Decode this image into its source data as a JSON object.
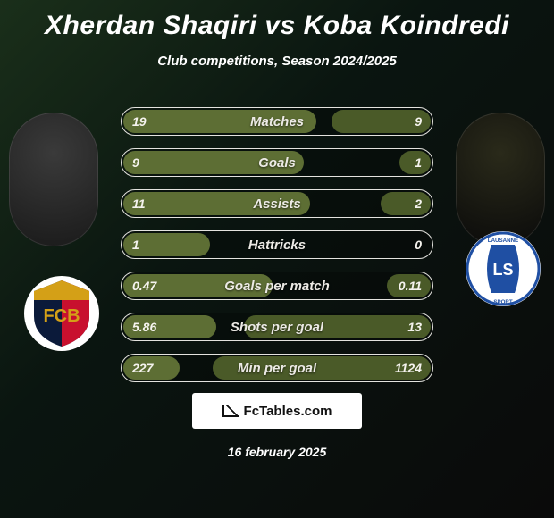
{
  "title": "Xherdan Shaqiri vs Koba Koindredi",
  "subtitle": "Club competitions, Season 2024/2025",
  "brand": "FcTables.com",
  "date": "16 february 2025",
  "colors": {
    "bar_left": "#5d6e34",
    "bar_right": "#4a5a28"
  },
  "players": {
    "left": {
      "name": "Xherdan Shaqiri",
      "club": "FC Basel"
    },
    "right": {
      "name": "Koba Koindredi",
      "club": "Lausanne Sport"
    }
  },
  "club_badges": {
    "left": {
      "bg": "#0b1a3a",
      "accent1": "#d4a017",
      "accent2": "#c8102e",
      "letters": "FCB"
    },
    "right": {
      "bg": "#ffffff",
      "accent1": "#1f4fa3",
      "accent2": "#1f4fa3",
      "letters": "LS"
    }
  },
  "stats": [
    {
      "label": "Matches",
      "left_text": "19",
      "right_text": "9",
      "left_pct": 62,
      "right_pct": 32
    },
    {
      "label": "Goals",
      "left_text": "9",
      "right_text": "1",
      "left_pct": 58,
      "right_pct": 10
    },
    {
      "label": "Assists",
      "left_text": "11",
      "right_text": "2",
      "left_pct": 60,
      "right_pct": 16
    },
    {
      "label": "Hattricks",
      "left_text": "1",
      "right_text": "0",
      "left_pct": 28,
      "right_pct": 0
    },
    {
      "label": "Goals per match",
      "left_text": "0.47",
      "right_text": "0.11",
      "left_pct": 48,
      "right_pct": 14
    },
    {
      "label": "Shots per goal",
      "left_text": "5.86",
      "right_text": "13",
      "left_pct": 30,
      "right_pct": 60
    },
    {
      "label": "Min per goal",
      "left_text": "227",
      "right_text": "1124",
      "left_pct": 18,
      "right_pct": 70
    }
  ]
}
